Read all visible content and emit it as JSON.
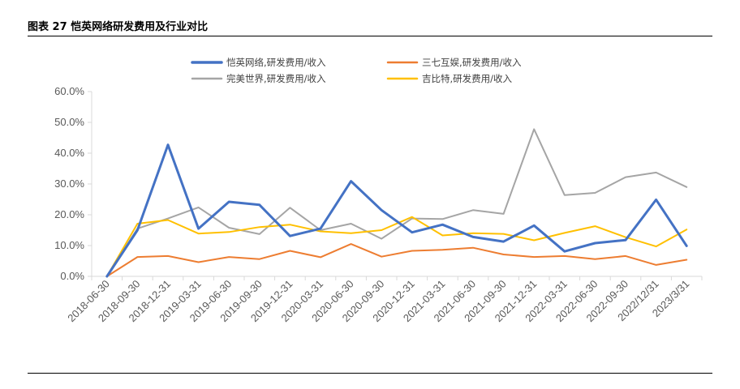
{
  "figure": {
    "title": "图表 27 恺英网络研发费用及行业对比"
  },
  "chart_data": {
    "type": "line",
    "title": "图表 27 恺英网络研发费用及行业对比",
    "xlabel": "",
    "ylabel": "",
    "ylim": [
      0,
      0.6
    ],
    "y_ticks": [
      "0.0%",
      "10.0%",
      "20.0%",
      "30.0%",
      "40.0%",
      "50.0%",
      "60.0%"
    ],
    "grid": false,
    "legend_position": "top",
    "categories": [
      "2018-06-30",
      "2018-09-30",
      "2018-12-31",
      "2019-03-31",
      "2019-06-30",
      "2019-09-30",
      "2019-12-31",
      "2020-03-31",
      "2020-06-30",
      "2020-09-30",
      "2020-12-31",
      "2021-03-31",
      "2021-06-30",
      "2021-09-30",
      "2021-12-31",
      "2022-03-31",
      "2022-06-30",
      "2022-09-30",
      "2022/12/31",
      "2023/3/31"
    ],
    "series": [
      {
        "name": "恺英网络,研发费用/收入",
        "color": "#4472C4",
        "width": 3,
        "values": [
          0.0,
          0.15,
          0.427,
          0.155,
          0.242,
          0.232,
          0.131,
          0.155,
          0.309,
          0.215,
          0.143,
          0.168,
          0.128,
          0.113,
          0.165,
          0.081,
          0.108,
          0.118,
          0.249,
          0.099
        ]
      },
      {
        "name": "三七互娱,研发费用/收入",
        "color": "#ED7D31",
        "width": 2,
        "values": [
          0.0,
          0.063,
          0.066,
          0.046,
          0.063,
          0.056,
          0.083,
          0.062,
          0.105,
          0.064,
          0.083,
          0.086,
          0.093,
          0.071,
          0.063,
          0.066,
          0.056,
          0.066,
          0.037,
          0.054
        ]
      },
      {
        "name": "完美世界,研发费用/收入",
        "color": "#A5A5A5",
        "width": 2,
        "values": [
          0.0,
          0.155,
          0.188,
          0.224,
          0.158,
          0.137,
          0.223,
          0.15,
          0.171,
          0.122,
          0.188,
          0.186,
          0.215,
          0.203,
          0.478,
          0.264,
          0.271,
          0.322,
          0.337,
          0.29
        ]
      },
      {
        "name": "吉比特,研发费用/收入",
        "color": "#FFC000",
        "width": 2,
        "values": [
          0.0,
          0.171,
          0.183,
          0.139,
          0.144,
          0.16,
          0.168,
          0.146,
          0.14,
          0.15,
          0.193,
          0.133,
          0.14,
          0.138,
          0.117,
          0.141,
          0.163,
          0.127,
          0.097,
          0.152
        ]
      }
    ]
  }
}
